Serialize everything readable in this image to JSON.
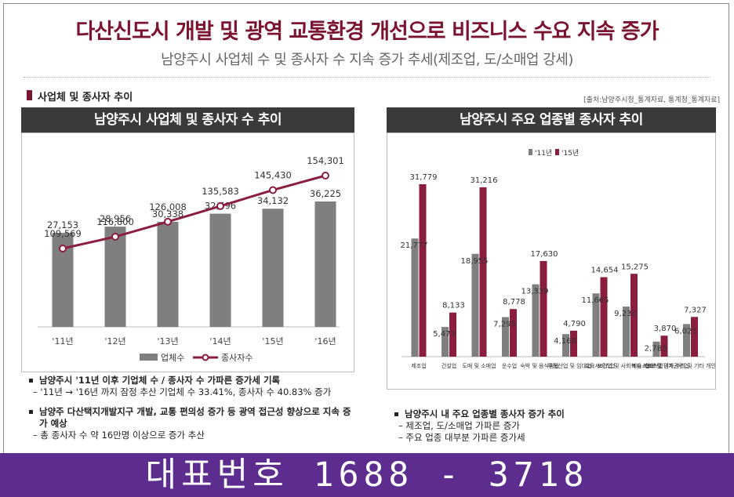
{
  "header": {
    "title": "다산신도시 개발 및 광역 교통환경 개선으로 비즈니스 수요 지속 증가",
    "subtitle": "남양주시 사업체 수 및 종사자 수 지속 증가 추세(제조업, 도/소매업 강세)"
  },
  "section": {
    "label": "사업체 및 종사자 추이",
    "source": "[출처:남양주시청_통계자료, 통계청_통계자료]"
  },
  "left_panel": {
    "heading": "남양주시 사업체 및 종사자 수 추이",
    "bullets": [
      {
        "main": "남양주시 '11년 이후 기업체 수 / 종사자 수 가파른 증가세 기록",
        "subs": [
          "– '11년 → '16년 까지 잠정 추산 기업체 수 33.41%, 종사자 수 40.83% 증가"
        ]
      },
      {
        "main": "남양주 다산택지개발지구 개발, 교통 편의성 증가 등 광역 접근성 향상으로 지속 증가 예상",
        "subs": [
          "– 총 종사자 수 약 16만명 이상으로 증가 추산"
        ]
      }
    ]
  },
  "right_panel": {
    "heading": "남양주시 주요 업종별 종사자 추이",
    "bullets": [
      {
        "main": "남양주시 내 주요 업종별 종사자 증가 추이",
        "subs": [
          "– 제조업, 도/소매업 가파른 증가",
          "– 주요 업종 대부분 가파른 증가세"
        ]
      }
    ]
  },
  "banner": {
    "text": "대표번호 1688 - 3718"
  },
  "chart_data": [
    {
      "type": "bar",
      "title": "남양주시 사업체 및 종사자 수 추이",
      "categories": [
        "'11년",
        "'12년",
        "'13년",
        "'14년",
        "'15년",
        "'16년"
      ],
      "series": [
        {
          "name": "업체수",
          "type": "bar",
          "color": "#7f7f7f",
          "values": [
            27153,
            28956,
            30338,
            32696,
            34132,
            36225
          ],
          "labels": [
            "27,153",
            "28,956",
            "30,338",
            "32,696",
            "34,132",
            "36,225"
          ]
        },
        {
          "name": "종사자수",
          "type": "line",
          "color": "#8b1e3f",
          "values": [
            109569,
            116800,
            126008,
            135583,
            145430,
            154301
          ],
          "labels": [
            "109,569",
            "116,800",
            "126,008",
            "135,583",
            "145,430",
            "154,301"
          ]
        }
      ],
      "legend": "bottom"
    },
    {
      "type": "bar",
      "title": "남양주시 주요 업종별 종사자 추이",
      "categories": [
        "제조업",
        "건설업",
        "도매 및 소매업",
        "운수업",
        "숙박 및 음식점업",
        "부동산업 및 임대업",
        "교육서비스업",
        "보건업 및 사회복지 서비스업",
        "예술스포츠및 여가관련업",
        "협회 및 단체,수리 및 기타 개인서비스업"
      ],
      "series": [
        {
          "name": "'11년",
          "color": "#7f7f7f",
          "values": [
            21777,
            5473,
            18955,
            7295,
            13339,
            4168,
            11665,
            9230,
            2783,
            6021
          ],
          "labels": [
            "21,777",
            "5,473",
            "18,955",
            "7,295",
            "13,339",
            "4,168",
            "11,665",
            "9,230",
            "2,783",
            "6,021"
          ]
        },
        {
          "name": "'15년",
          "color": "#8b1e3f",
          "values": [
            31779,
            8133,
            31216,
            8778,
            17630,
            4790,
            14654,
            15275,
            3870,
            7327
          ],
          "labels": [
            "31,779",
            "8,133",
            "31,216",
            "8,778",
            "17,630",
            "4,790",
            "14,654",
            "15,275",
            "3,870",
            "7,327"
          ]
        }
      ],
      "legend": "top"
    }
  ]
}
